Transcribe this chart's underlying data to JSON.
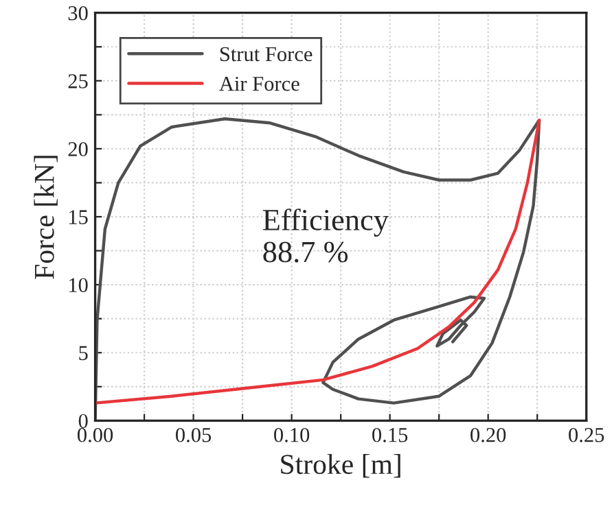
{
  "chart_data": {
    "type": "line",
    "xlabel": "Stroke [m]",
    "ylabel": "Force [kN]",
    "xlim": [
      0,
      0.25
    ],
    "ylim": [
      0,
      30
    ],
    "xticks": [
      {
        "value": 0,
        "label": "0.00"
      },
      {
        "value": 0.025,
        "label": null
      },
      0.05,
      {
        "value": 0.075,
        "label": null
      },
      {
        "value": 0.1,
        "label": "0.10"
      },
      {
        "value": 0.125,
        "label": null
      },
      0.15,
      {
        "value": 0.175,
        "label": null
      },
      {
        "value": 0.2,
        "label": "0.20"
      },
      {
        "value": 0.225,
        "label": null
      },
      0.25
    ],
    "yticks": [
      0,
      {
        "value": 2.5,
        "label": null
      },
      5,
      {
        "value": 7.5,
        "label": null
      },
      10,
      {
        "value": 12.5,
        "label": null
      },
      15,
      {
        "value": 17.5,
        "label": null
      },
      20,
      {
        "value": 22.5,
        "label": null
      },
      25,
      {
        "value": 27.5,
        "label": null
      },
      30
    ],
    "grid": true,
    "legend": "top left",
    "line_style": "solid",
    "marker": "none",
    "annotations": [
      "Efficiency\n88.7 %"
    ],
    "series": [
      {
        "name": "Strut Force",
        "color": "#505050",
        "x": [
          0,
          0.001,
          0.005,
          0.0118,
          0.023,
          0.039,
          0.066,
          0.089,
          0.112,
          0.134,
          0.157,
          0.175,
          0.191,
          0.205,
          0.216,
          0.226,
          0.225,
          0.223,
          0.218,
          0.211,
          0.202,
          0.191,
          0.175,
          0.152,
          0.134,
          0.121,
          0.116,
          0.121,
          0.134,
          0.152,
          0.175,
          0.191,
          0.198,
          0.193,
          0.186,
          0.18,
          0.174,
          0.177,
          0.186,
          0.189,
          0.182
        ],
        "values": [
          0,
          7.4,
          14.1,
          17.5,
          20.2,
          21.6,
          22.2,
          21.9,
          20.9,
          19.5,
          18.3,
          17.7,
          17.7,
          18.2,
          19.9,
          22.1,
          19.2,
          15.8,
          12.4,
          9.1,
          5.7,
          3.3,
          1.8,
          1.3,
          1.6,
          2.3,
          2.8,
          4.3,
          6.0,
          7.4,
          8.4,
          9.1,
          9.0,
          8.0,
          7.0,
          6.0,
          5.5,
          6.4,
          7.4,
          7.0,
          5.8
        ]
      },
      {
        "name": "Air Force",
        "color": "#e8363b",
        "x": [
          0,
          0.039,
          0.084,
          0.116,
          0.141,
          0.164,
          0.18,
          0.193,
          0.205,
          0.214,
          0.22,
          0.226
        ],
        "values": [
          1.3,
          1.8,
          2.5,
          3.0,
          4.0,
          5.3,
          6.9,
          8.7,
          11.1,
          14.1,
          17.5,
          22.1
        ]
      }
    ]
  }
}
